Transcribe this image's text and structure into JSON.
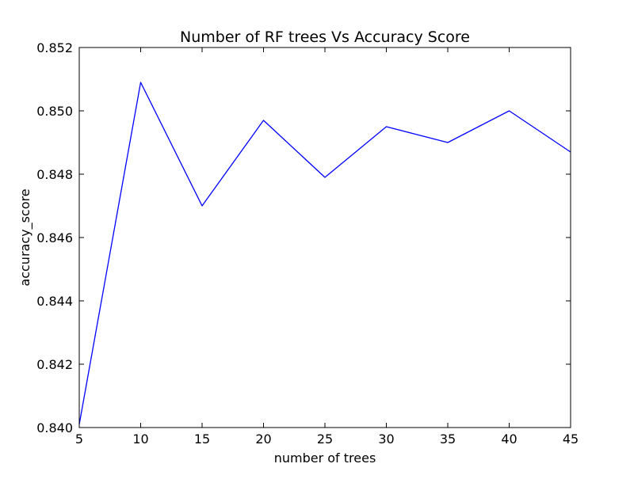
{
  "chart_data": {
    "type": "line",
    "title": "Number of RF trees Vs Accuracy Score",
    "xlabel": "number of trees",
    "ylabel": "accuracy_score",
    "xlim": [
      5,
      45
    ],
    "ylim": [
      0.84,
      0.852
    ],
    "x_ticks": [
      5,
      10,
      15,
      20,
      25,
      30,
      35,
      40,
      45
    ],
    "x_tick_labels": [
      "5",
      "10",
      "15",
      "20",
      "25",
      "30",
      "35",
      "40",
      "45"
    ],
    "y_ticks": [
      0.84,
      0.842,
      0.844,
      0.846,
      0.848,
      0.85,
      0.852
    ],
    "y_tick_labels": [
      "0.840",
      "0.842",
      "0.844",
      "0.846",
      "0.848",
      "0.850",
      "0.852"
    ],
    "grid": false,
    "legend": "none",
    "series": [
      {
        "color": "#0000ff",
        "x": [
          5,
          10,
          15,
          20,
          25,
          30,
          35,
          40,
          45
        ],
        "y": [
          0.8401,
          0.8509,
          0.847,
          0.8497,
          0.8479,
          0.8495,
          0.849,
          0.85,
          0.8487
        ]
      }
    ]
  }
}
